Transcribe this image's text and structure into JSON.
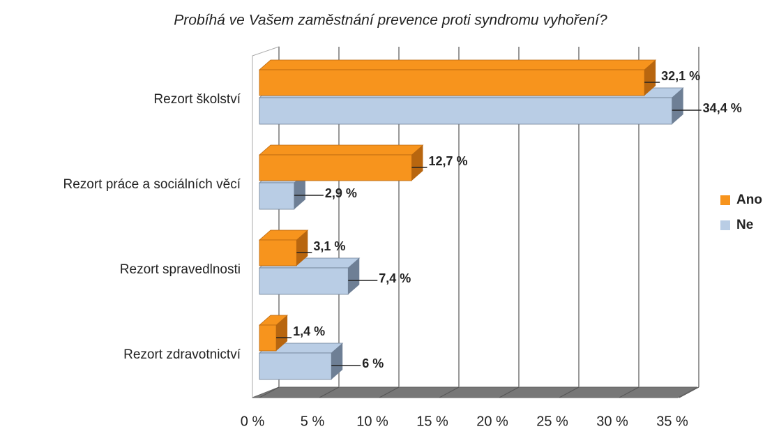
{
  "chart_data": {
    "type": "bar",
    "orientation": "horizontal",
    "title": "Probíhá ve Vašem zaměstnání prevence proti syndromu vyhoření?",
    "categories": [
      "Rezort školství",
      "Rezort práce a sociálních věcí",
      "Rezort spravedlnosti",
      "Rezort zdravotnictví"
    ],
    "series": [
      {
        "name": "Ano",
        "color": "#f7941d",
        "side": "#b8660f",
        "values": [
          32.1,
          12.7,
          3.1,
          1.4
        ],
        "value_labels": [
          "32,1 %",
          "12,7 %",
          "3,1 %",
          "1,4 %"
        ]
      },
      {
        "name": "Ne",
        "color": "#b9cde5",
        "side": "#6e7f95",
        "values": [
          34.4,
          2.9,
          7.4,
          6
        ],
        "value_labels": [
          "34,4 %",
          "2,9 %",
          "7,4 %",
          "6 %"
        ]
      }
    ],
    "xlim": [
      0,
      35
    ],
    "xticks": [
      {
        "value": 0,
        "label": "0 %"
      },
      {
        "value": 5,
        "label": "5 %"
      },
      {
        "value": 10,
        "label": "10 %"
      },
      {
        "value": 15,
        "label": "15 %"
      },
      {
        "value": 20,
        "label": "20 %"
      },
      {
        "value": 25,
        "label": "25 %"
      },
      {
        "value": 30,
        "label": "30 %"
      },
      {
        "value": 35,
        "label": "35 %"
      }
    ],
    "grid": true,
    "legend": "right"
  }
}
